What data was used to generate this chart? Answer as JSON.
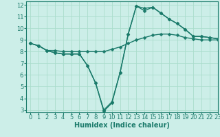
{
  "title": "",
  "xlabel": "Humidex (Indice chaleur)",
  "ylabel": "",
  "background_color": "#cceee8",
  "grid_color": "#aaddcc",
  "line_color": "#1a7a6a",
  "xlim": [
    -0.5,
    23
  ],
  "ylim": [
    2.8,
    12.3
  ],
  "yticks": [
    3,
    4,
    5,
    6,
    7,
    8,
    9,
    10,
    11,
    12
  ],
  "xticks": [
    0,
    1,
    2,
    3,
    4,
    5,
    6,
    7,
    8,
    9,
    10,
    11,
    12,
    13,
    14,
    15,
    16,
    17,
    18,
    19,
    20,
    21,
    22,
    23
  ],
  "series": [
    {
      "x": [
        0,
        1,
        2,
        3,
        4,
        5,
        6,
        7,
        8,
        9,
        10,
        11,
        12,
        13,
        14,
        15,
        16,
        17,
        18,
        19,
        20,
        21,
        22,
        23
      ],
      "y": [
        8.7,
        8.5,
        8.1,
        8.1,
        8.0,
        8.0,
        8.0,
        8.0,
        8.0,
        8.0,
        8.2,
        8.4,
        8.7,
        9.0,
        9.2,
        9.4,
        9.5,
        9.5,
        9.4,
        9.2,
        9.1,
        9.0,
        9.0,
        9.0
      ]
    },
    {
      "x": [
        0,
        1,
        2,
        3,
        4,
        5,
        6,
        7,
        8,
        9,
        10,
        11,
        12,
        13,
        14,
        15,
        16,
        17,
        18,
        19,
        20,
        21,
        22,
        23
      ],
      "y": [
        8.7,
        8.5,
        8.1,
        7.9,
        7.8,
        7.8,
        7.8,
        6.8,
        5.3,
        3.0,
        3.7,
        6.2,
        9.5,
        11.9,
        11.7,
        11.8,
        11.3,
        10.8,
        10.4,
        9.9,
        9.3,
        9.3,
        9.2,
        9.1
      ]
    },
    {
      "x": [
        0,
        1,
        2,
        3,
        4,
        5,
        6,
        7,
        8,
        9,
        10,
        11,
        12,
        13,
        14,
        15,
        16,
        17,
        18,
        19,
        20,
        21,
        22,
        23
      ],
      "y": [
        8.7,
        8.5,
        8.1,
        7.9,
        7.8,
        7.8,
        7.8,
        6.8,
        5.3,
        2.9,
        3.6,
        6.2,
        9.5,
        11.9,
        11.5,
        11.8,
        11.3,
        10.8,
        10.4,
        9.9,
        9.3,
        9.3,
        9.2,
        9.1
      ]
    }
  ],
  "marker_size": 2.5,
  "line_width": 1.0,
  "font_size_label": 7,
  "font_size_tick": 6
}
